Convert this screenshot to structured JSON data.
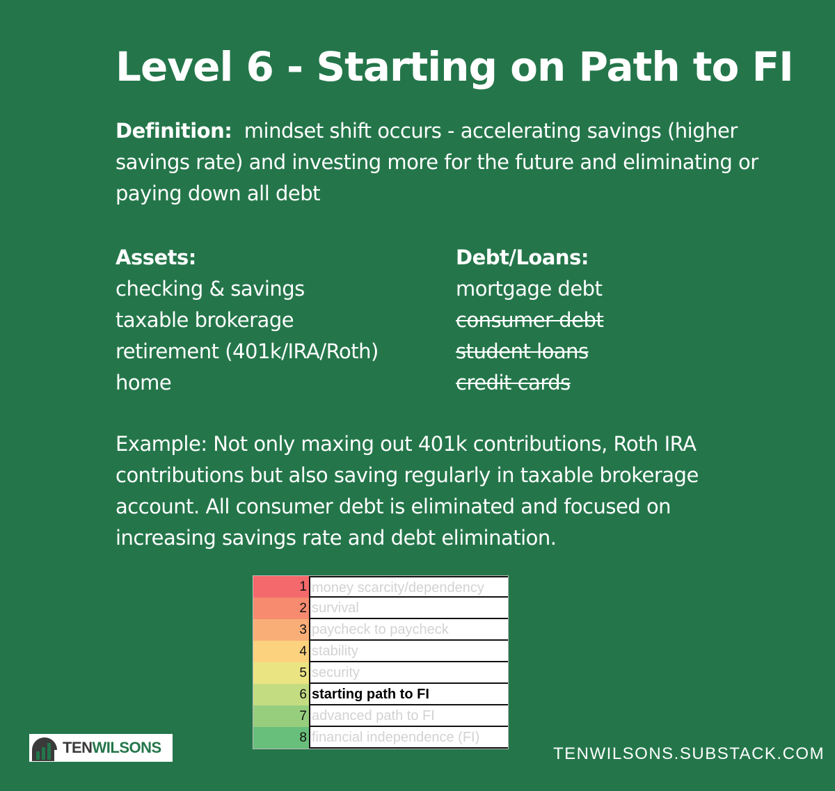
{
  "title": "Level 6 - Starting on Path to FI",
  "definition": {
    "label": "Definition:",
    "text": "mindset shift occurs - accelerating savings (higher savings rate) and investing more for the future and eliminating or paying down all debt"
  },
  "assets": {
    "heading": "Assets:",
    "items": [
      "checking & savings",
      "taxable brokerage",
      "retirement (401k/IRA/Roth)",
      "home"
    ]
  },
  "debts": {
    "heading": "Debt/Loans:",
    "items": [
      {
        "label": "mortgage debt",
        "struck": false
      },
      {
        "label": "consumer debt",
        "struck": true
      },
      {
        "label": "student loans",
        "struck": true
      },
      {
        "label": "credit cards",
        "struck": true
      }
    ]
  },
  "example": "Example:  Not only maxing out 401k contributions, Roth IRA contributions but also saving regularly in taxable brokerage account.  All consumer debt is eliminated and focused on increasing savings rate and debt elimination.",
  "levels": [
    {
      "num": "1",
      "label": "money scarcity/dependency",
      "color": "#f4696b"
    },
    {
      "num": "2",
      "label": "survival",
      "color": "#f68b6f"
    },
    {
      "num": "3",
      "label": "paycheck to paycheck",
      "color": "#f9ae78"
    },
    {
      "num": "4",
      "label": "stability",
      "color": "#fdd27f"
    },
    {
      "num": "5",
      "label": "security",
      "color": "#ebe483"
    },
    {
      "num": "6",
      "label": "starting path to FI",
      "color": "#c3dc82",
      "active": true
    },
    {
      "num": "7",
      "label": "advanced path to FI",
      "color": "#97ce7e"
    },
    {
      "num": "8",
      "label": "financial independence (FI)",
      "color": "#68bf7b"
    }
  ],
  "logo": {
    "text_ten": "TEN",
    "text_wilsons": "WILSONS",
    "ten_color": "#3a3a3a",
    "wilsons_color": "#24764a"
  },
  "site": "TENWILSONS.SUBSTACK.COM"
}
